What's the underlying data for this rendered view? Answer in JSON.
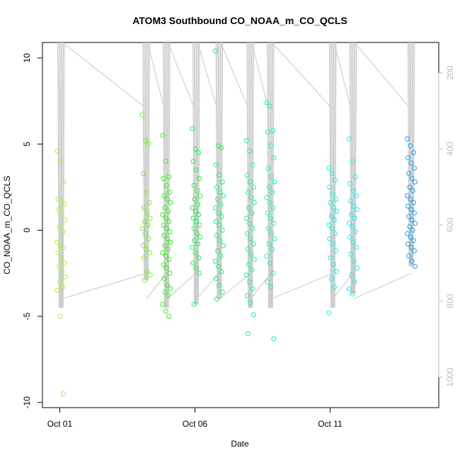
{
  "chart_data": {
    "type": "scatter",
    "title": "ATOM3 Southbound CO_NOAA_m_CO_QCLS",
    "xlabel": "Date",
    "ylabel": "CO_NOAA_m_CO_QCLS",
    "x_ticks": [
      "Oct 01",
      "Oct 06",
      "Oct 11"
    ],
    "x_tick_days": [
      1,
      6,
      11
    ],
    "xlim": [
      0.36,
      15.02
    ],
    "ylim": [
      -10.3,
      10.9
    ],
    "y_ticks": [
      -10,
      -5,
      0,
      5,
      10
    ],
    "y2_ticks": [
      200,
      400,
      600,
      800,
      1000
    ],
    "y2_note": "right axis shows pressure increasing downward",
    "y2lim": [
      120,
      1080
    ],
    "grid": false,
    "series": [
      {
        "day": 1.05,
        "color": "#a8f044",
        "points": [
          4.6,
          4.0,
          2.8,
          1.8,
          1.7,
          1.5,
          1.2,
          1.0,
          0.6,
          0.2,
          -0.1,
          -0.7,
          -0.9,
          -1.0,
          -1.3,
          -1.6,
          -1.9,
          -2.1,
          -2.4,
          -2.7,
          -3.0,
          -3.3,
          -3.5,
          -5.0,
          -9.5
        ]
      },
      {
        "day": 4.2,
        "color": "#70f030",
        "points": [
          6.7,
          5.2,
          5.0,
          3.3,
          2.2,
          1.6,
          1.3,
          1.0,
          0.7,
          0.5,
          0.3,
          0.1,
          -0.2,
          -0.5,
          -0.9,
          -1.1,
          -1.3,
          -1.6,
          -2.4,
          -2.6,
          -2.9
        ]
      },
      {
        "day": 4.95,
        "color": "#2ef01a",
        "points": [
          5.5,
          4.0,
          3.1,
          3.0,
          2.6,
          2.2,
          2.0,
          1.8,
          1.6,
          1.3,
          1.1,
          0.9,
          0.7,
          0.5,
          0.3,
          0.1,
          -0.1,
          -0.3,
          -0.5,
          -0.7,
          -0.9,
          -1.1,
          -1.3,
          -1.5,
          -1.7,
          -2.0,
          -2.2,
          -2.5,
          -2.8,
          -3.2,
          -3.4,
          -3.6,
          -3.8,
          -4.3,
          -4.7,
          -5.0
        ]
      },
      {
        "day": 6.05,
        "color": "#22f04c",
        "points": [
          5.9,
          4.7,
          4.5,
          4.0,
          3.5,
          3.0,
          2.6,
          2.3,
          2.0,
          1.8,
          1.5,
          1.3,
          1.1,
          0.9,
          0.7,
          0.5,
          0.3,
          0.1,
          -0.2,
          -0.4,
          -0.6,
          -0.8,
          -1.0,
          -1.3,
          -1.6,
          -1.9,
          -2.2,
          -2.5,
          -4.3
        ]
      },
      {
        "day": 6.9,
        "color": "#22f070",
        "points": [
          10.4,
          4.9,
          4.8,
          3.8,
          3.2,
          2.8,
          2.5,
          2.2,
          2.0,
          1.8,
          1.5,
          1.3,
          1.0,
          0.8,
          0.5,
          0.3,
          0.0,
          -0.3,
          -0.6,
          -0.9,
          -1.2,
          -1.5,
          -1.8,
          -2.1,
          -2.4,
          -2.8,
          -3.2,
          -3.6,
          -4.0
        ]
      },
      {
        "day": 8.05,
        "color": "#22f090",
        "points": [
          5.2,
          4.6,
          3.8,
          3.2,
          2.8,
          2.5,
          2.2,
          1.9,
          1.6,
          1.3,
          1.0,
          0.7,
          0.4,
          0.1,
          -0.2,
          -0.5,
          -0.8,
          -1.1,
          -1.4,
          -1.7,
          -2.0,
          -2.3,
          -2.6,
          -3.0,
          -3.4,
          -3.8,
          -4.2,
          -4.9,
          -6.0
        ]
      },
      {
        "day": 8.8,
        "color": "#22f0ac",
        "points": [
          7.4,
          7.2,
          5.8,
          5.7,
          4.9,
          4.2,
          3.6,
          3.1,
          2.8,
          2.5,
          2.2,
          1.9,
          1.6,
          1.3,
          1.0,
          0.7,
          0.4,
          0.1,
          -0.2,
          -0.5,
          -0.8,
          -1.1,
          -1.5,
          -1.9,
          -2.5,
          -3.0,
          -3.3,
          -6.3
        ]
      },
      {
        "day": 11.1,
        "color": "#22f0e0",
        "points": [
          3.6,
          3.3,
          2.9,
          2.5,
          2.1,
          1.8,
          1.6,
          1.3,
          1.1,
          0.8,
          0.6,
          0.3,
          0.1,
          -0.2,
          -0.5,
          -0.8,
          -1.2,
          -1.6,
          -2.0,
          -2.4,
          -2.8,
          -3.3,
          -4.8
        ]
      },
      {
        "day": 11.85,
        "color": "#22e8f0",
        "points": [
          5.3,
          4.0,
          3.1,
          2.7,
          2.3,
          2.0,
          1.7,
          1.4,
          1.2,
          0.9,
          0.7,
          0.4,
          0.2,
          -0.1,
          -0.4,
          -0.7,
          -1.0,
          -1.4,
          -1.8,
          -2.2,
          -2.6,
          -3.0,
          -3.4,
          -3.7
        ]
      },
      {
        "day": 14.0,
        "color": "#1aa0f0",
        "points": [
          5.3,
          4.9,
          4.5,
          4.2,
          3.9,
          3.6,
          3.3,
          3.0,
          2.8,
          2.5,
          2.3,
          2.0,
          1.8,
          1.6,
          1.4,
          1.2,
          1.0,
          0.8,
          0.6,
          0.4,
          0.2,
          0.0,
          -0.2,
          -0.4,
          -0.6,
          -0.8,
          -1.0,
          -1.2,
          -1.5,
          -1.8,
          -2.1
        ]
      }
    ]
  }
}
